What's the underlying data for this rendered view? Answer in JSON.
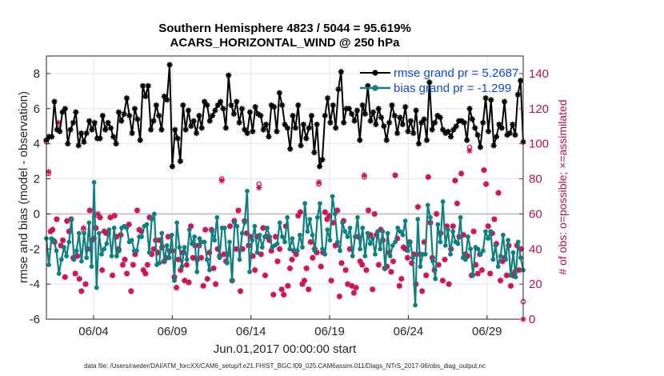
{
  "chart_data": {
    "type": "line",
    "title": "Southern Hemisphere 4823 / 5044 = 95.619%",
    "subtitle": "ACARS_HORIZONTAL_WIND @ 250 hPa",
    "xlabel": "Jun.01,2017 00:00:00 start",
    "ylabel": "rmse and bias (model - observation)",
    "y2label": "# of obs: o=possible; ×=assimilated",
    "footer": "data file: /Users/raeder/DAI/ATM_forcXX/CAM6_setup/f.e21.FHIST_BGC.f09_025.CAM6assim.011/Diags_NTrS_2017-06/obs_diag_output.nc",
    "x_range": [
      1.0,
      31.3
    ],
    "ylim": [
      -6,
      9
    ],
    "y2lim": [
      0,
      150
    ],
    "x_ticks": [
      {
        "x": 4,
        "label": "06/04"
      },
      {
        "x": 9,
        "label": "06/09"
      },
      {
        "x": 14,
        "label": "06/14"
      },
      {
        "x": 19,
        "label": "06/19"
      },
      {
        "x": 24,
        "label": "06/24"
      },
      {
        "x": 29,
        "label": "06/29"
      }
    ],
    "y_ticks": [
      -6,
      -4,
      -2,
      0,
      2,
      4,
      6,
      8
    ],
    "y2_ticks": [
      0,
      20,
      40,
      60,
      80,
      100,
      120,
      140
    ],
    "grid": true,
    "legend_position": "top-right",
    "colors": {
      "rmse": "#000000",
      "bias": "#0f7f80",
      "obs": "#cc1155",
      "zero_line": "#bdbdbd"
    },
    "series": [
      {
        "key": "rmse",
        "name": "rmse grand pr = 5.2687",
        "marker": "star",
        "values": [
          4.2,
          4.4,
          4.4,
          6.4,
          4.8,
          4.7,
          5.8,
          6.0,
          4.0,
          4.8,
          5.2,
          5.8,
          3.9,
          4.6,
          4.1,
          4.6,
          5.3,
          4.8,
          5.2,
          4.3,
          4.3,
          5.6,
          4.8,
          5.2,
          4.9,
          4.4,
          4.0,
          5.8,
          5.3,
          5.7,
          6.6,
          5.6,
          4.6,
          6.0,
          5.4,
          4.2,
          7.3,
          6.7,
          7.3,
          4.8,
          5.3,
          6.2,
          5.6,
          4.8,
          6.7,
          6.5,
          8.5,
          2.7,
          4.8,
          4.3,
          3.0,
          6.2,
          4.8,
          5.9,
          5.0,
          5.3,
          4.6,
          5.6,
          4.9,
          6.4,
          6.2,
          5.3,
          5.6,
          5.9,
          6.2,
          6.4,
          6.0,
          4.9,
          7.9,
          6.2,
          5.7,
          6.4,
          5.2,
          6.0,
          4.8,
          4.6,
          5.8,
          4.7,
          6.1,
          5.7,
          5.6,
          4.8,
          5.1,
          4.4,
          6.2,
          6.1,
          4.7,
          6.9,
          6.2,
          5.1,
          4.9,
          3.7,
          5.6,
          4.9,
          6.2,
          3.9,
          5.1,
          4.3,
          4.9,
          5.6,
          3.5,
          5.1,
          2.7,
          3.1,
          5.6,
          6.6,
          5.2,
          6.2,
          4.9,
          7.1,
          8.1,
          5.2,
          6.0,
          6.0,
          5.7,
          5.3,
          5.9,
          4.2,
          6.2,
          5.7,
          7.3,
          5.3,
          5.8,
          5.1,
          6.0,
          5.5,
          5.0,
          4.2,
          5.2,
          6.2,
          5.6,
          4.6,
          5.5,
          5.1,
          6.1,
          4.7,
          5.3,
          4.6,
          5.9,
          4.0,
          5.2,
          5.4,
          4.2,
          7.5,
          4.8,
          5.2,
          5.6,
          5.5,
          4.8,
          4.6,
          4.7,
          4.4,
          4.8,
          5.0,
          5.3,
          5.3,
          5.2,
          4.2,
          6.0,
          5.4,
          4.9,
          4.5,
          3.8,
          5.2,
          6.6,
          4.7,
          6.5,
          3.9,
          4.4,
          5.1,
          4.9,
          6.4,
          4.5,
          4.6,
          5.1,
          4.5,
          6.8,
          7.6,
          4.1
        ]
      },
      {
        "key": "bias",
        "name": "bias grand pr = -1.299",
        "marker": "dot",
        "values": [
          -1.4,
          -2.9,
          -1.4,
          -1.5,
          -2.1,
          -3.4,
          -2.6,
          -1.9,
          -2.4,
          -1.6,
          -0.3,
          -2.6,
          -2.1,
          -1.1,
          -2.7,
          -1.1,
          -2.5,
          -0.5,
          -3.0,
          1.8,
          -4.2,
          -1.1,
          -2.3,
          -2.0,
          -1.7,
          -0.9,
          -2.4,
          -0.8,
          -2.4,
          -2.1,
          -0.8,
          -0.7,
          -0.8,
          -1.6,
          -1.5,
          -2.1,
          -2.1,
          -1.3,
          -1.3,
          -0.7,
          -0.6,
          -2.2,
          -0.3,
          0.0,
          -2.9,
          -2.8,
          -1.1,
          -2.7,
          -1.8,
          -2.5,
          -1.2,
          -3.8,
          -0.5,
          -1.9,
          -3.0,
          -1.9,
          -2.6,
          -0.9,
          -1.7,
          -1.3,
          -3.3,
          -1.4,
          -1.6,
          -1.6,
          -2.6,
          -3.2,
          -1.0,
          -1.5,
          -0.2,
          -2.5,
          -0.8,
          -0.8,
          -2.8,
          -1.6,
          -3.8,
          -0.5,
          -0.7,
          -2.6,
          -1.1,
          -0.5,
          1.3,
          -3.3,
          -1.5,
          -0.7,
          -2.2,
          -1.2,
          -1.9,
          -1.3,
          -0.8,
          -1.3,
          -1.9,
          -1.8,
          -1.7,
          -0.5,
          -1.3,
          -1.6,
          -0.2,
          -2.0,
          -1.4,
          -2.1,
          -2.1,
          -1.2,
          -1.9,
          0.6,
          -1.0,
          -0.3,
          -1.2,
          -2.1,
          -0.2,
          0.6,
          -2.0,
          -2.3,
          -0.9,
          -1.5,
          1.0,
          0.0,
          -1.6,
          -2.1,
          -0.5,
          -1.0,
          -1.3,
          -0.8,
          -2.4,
          -1.3,
          -0.2,
          -2.0,
          -0.8,
          -2.4,
          -1.1,
          -1.7,
          -1.4,
          -2.3,
          -1.0,
          -2.0,
          -1.0,
          -3.1,
          -1.1,
          -2.4,
          -1.8,
          -1.6,
          -0.8,
          -1.0,
          -1.2,
          -0.4,
          -2.1,
          -1.6,
          -2.5,
          -5.2,
          -0.3,
          -3.0,
          -2.3,
          -2.3,
          0.5,
          -0.2,
          -2.7,
          -3.7,
          -0.6,
          -1.6,
          0.7,
          -1.8,
          -0.9,
          -2.3,
          -1.0,
          -1.6,
          -1.7,
          -0.2,
          -2.5,
          -2.6,
          -1.3,
          -2.0,
          -3.5,
          -1.9,
          -2.0,
          -2.3,
          -2.1,
          -1.0,
          -1.4,
          -1.0,
          -2.6,
          -1.8,
          -3.0,
          -2.4,
          -1.2,
          -2.6,
          -1.5,
          -3.5,
          -2.2,
          -3.6,
          -1.6,
          -2.5,
          -3.2
        ]
      },
      {
        "key": "obs_possible",
        "name": "possible",
        "marker": "circle",
        "axis": "right",
        "values": [
          101,
          83,
          50,
          51,
          44,
          57,
          111,
          42,
          45,
          24,
          56,
          50,
          57,
          35,
          26,
          36,
          23,
          16,
          51,
          20,
          40,
          62,
          45,
          46,
          52,
          59,
          58,
          28,
          50,
          49,
          49,
          58,
          25,
          59,
          47,
          40,
          48,
          31,
          34,
          26,
          54,
          16,
          31,
          37,
          62,
          51,
          50,
          28,
          26,
          31,
          58,
          37,
          40,
          45,
          38,
          45,
          41,
          33,
          35,
          47,
          39,
          39,
          24,
          18,
          34,
          28,
          38,
          22,
          31,
          21,
          53,
          35,
          42,
          34,
          42,
          35,
          19,
          51,
          23,
          38,
          51,
          29,
          20,
          40,
          36,
          80,
          37,
          33,
          37,
          53,
          22,
          56,
          40,
          62,
          16,
          40,
          56,
          49,
          42,
          47,
          36,
          28,
          47,
          77,
          37,
          52,
          25,
          47,
          45,
          39,
          14,
          47,
          33,
          40,
          17,
          14,
          53,
          19,
          29,
          34,
          39,
          37,
          59,
          61,
          20,
          22,
          29,
          17,
          44,
          35,
          40,
          38,
          77,
          30,
          38,
          61,
          57,
          59,
          22,
          55,
          42,
          62,
          13,
          32,
          56,
          28,
          20,
          40,
          19,
          15,
          18,
          47,
          33,
          31,
          81,
          28,
          62,
          48,
          17,
          60,
          48,
          31,
          51,
          45,
          29,
          30,
          38,
          27,
          33,
          82,
          46,
          19,
          23,
          41,
          40,
          35,
          44,
          32,
          37,
          20,
          64,
          37,
          16,
          44,
          25,
          81,
          55,
          35,
          28,
          60,
          31,
          49,
          22,
          34,
          53,
          20,
          40,
          53,
          79,
          66,
          47,
          83,
          48,
          37,
          36,
          98,
          25,
          50,
          31,
          26,
          37,
          28,
          85,
          77,
          53,
          26,
          49,
          57,
          43,
          72,
          22,
          33,
          35,
          25,
          42,
          19,
          25,
          27,
          42,
          28,
          40,
          10
        ]
      },
      {
        "key": "obs_assimilated",
        "name": "assimilated",
        "marker": "x",
        "axis": "right",
        "values": [
          102,
          84,
          50,
          51,
          44,
          57,
          112,
          42,
          45,
          24,
          56,
          50,
          57,
          35,
          26,
          36,
          23,
          16,
          52,
          20,
          40,
          62,
          45,
          46,
          52,
          60,
          58,
          28,
          50,
          49,
          49,
          58,
          25,
          59,
          47,
          40,
          48,
          31,
          34,
          26,
          54,
          16,
          31,
          37,
          62,
          51,
          50,
          28,
          26,
          31,
          58,
          37,
          40,
          45,
          38,
          45,
          41,
          33,
          35,
          47,
          39,
          39,
          24,
          18,
          34,
          28,
          38,
          22,
          31,
          21,
          53,
          35,
          42,
          34,
          42,
          35,
          19,
          51,
          23,
          38,
          51,
          29,
          20,
          40,
          36,
          79,
          37,
          33,
          37,
          53,
          22,
          56,
          40,
          62,
          16,
          40,
          56,
          49,
          42,
          47,
          36,
          28,
          47,
          75,
          37,
          52,
          25,
          47,
          45,
          39,
          14,
          47,
          33,
          40,
          17,
          14,
          53,
          19,
          29,
          34,
          39,
          37,
          59,
          61,
          20,
          22,
          29,
          17,
          44,
          35,
          40,
          38,
          78,
          30,
          38,
          61,
          57,
          59,
          22,
          55,
          42,
          62,
          13,
          32,
          56,
          28,
          20,
          40,
          19,
          15,
          18,
          47,
          33,
          31,
          82,
          28,
          62,
          48,
          17,
          60,
          48,
          31,
          51,
          45,
          29,
          30,
          38,
          27,
          33,
          82,
          46,
          19,
          23,
          41,
          40,
          35,
          44,
          32,
          37,
          20,
          64,
          37,
          16,
          44,
          25,
          81,
          55,
          35,
          28,
          60,
          31,
          49,
          22,
          34,
          53,
          20,
          40,
          53,
          79,
          66,
          47,
          83,
          48,
          37,
          36,
          96,
          25,
          50,
          31,
          26,
          37,
          28,
          85,
          77,
          53,
          26,
          49,
          57,
          43,
          72,
          22,
          33,
          35,
          25,
          42,
          19,
          25,
          27,
          42,
          28,
          40,
          0
        ]
      }
    ]
  }
}
